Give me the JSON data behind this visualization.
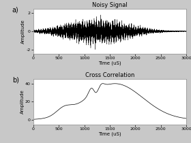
{
  "title_a": "Noisy Signal",
  "title_b": "Cross Correlation",
  "xlabel": "Time (uS)",
  "ylabel": "Amplitude",
  "xlim": [
    0,
    3000
  ],
  "ylim_a": [
    -2.5,
    2.5
  ],
  "ylim_b": [
    -5,
    45
  ],
  "yticks_a": [
    -2,
    0,
    2
  ],
  "yticks_b": [
    0,
    20,
    40
  ],
  "xticks": [
    0,
    500,
    1000,
    1500,
    2000,
    2500,
    3000
  ],
  "label_a": "a)",
  "label_b": "b)",
  "line_color": "#000000",
  "background": "#ffffff",
  "fig_bg": "#c8c8c8",
  "border_color": "#999999"
}
